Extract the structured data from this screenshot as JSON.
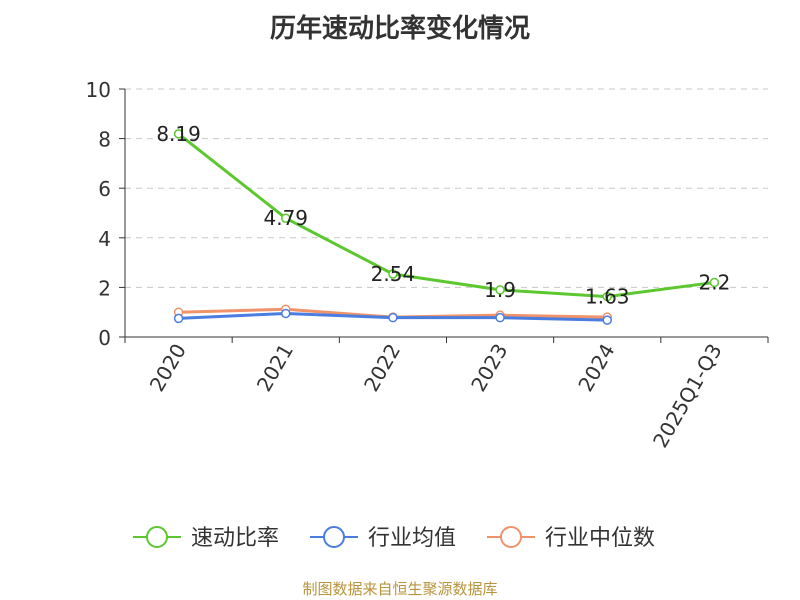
{
  "chart_data": {
    "type": "line",
    "title": "历年速动比率变化情况",
    "categories": [
      "2020",
      "2021",
      "2022",
      "2023",
      "2024",
      "2025Q1-Q3"
    ],
    "ylim": [
      0,
      10
    ],
    "yticks": [
      "0",
      "2",
      "4",
      "6",
      "8",
      "10"
    ],
    "grid": true,
    "legend_position": "bottom",
    "series": [
      {
        "name": "速动比率",
        "color": "#5cc72e",
        "values": [
          8.19,
          4.79,
          2.54,
          1.9,
          1.63,
          2.2
        ],
        "labels": [
          "8.19",
          "4.79",
          "2.54",
          "1.9",
          "1.63",
          "2.2"
        ]
      },
      {
        "name": "行业均值",
        "color": "#4a7de0",
        "values": [
          0.75,
          0.95,
          0.78,
          0.78,
          0.68,
          null
        ]
      },
      {
        "name": "行业中位数",
        "color": "#f0936a",
        "values": [
          1.0,
          1.12,
          0.8,
          0.88,
          0.8,
          null
        ]
      }
    ]
  },
  "source": "制图数据来自恒生聚源数据库"
}
